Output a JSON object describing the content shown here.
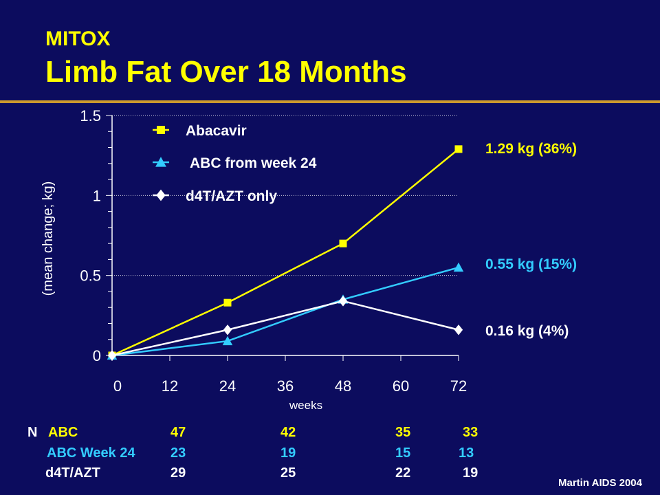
{
  "title": "MITOX",
  "subtitle": "Limb Fat Over 18 Months",
  "citation": "Martin AIDS 2004",
  "chart_data": {
    "type": "line",
    "ylabel": "(mean change; kg)",
    "xlabel": "weeks",
    "ylim": [
      0,
      1.5
    ],
    "xlim": [
      0,
      72
    ],
    "yticks": [
      0,
      0.5,
      1,
      1.5
    ],
    "ytick_labels": [
      "0",
      "0.5",
      "1",
      "1.5"
    ],
    "xticks": [
      0,
      12,
      24,
      36,
      48,
      60,
      72
    ],
    "xtick_labels": [
      "0",
      "12",
      "24",
      "36",
      "48",
      "60",
      "72"
    ],
    "grid": "horizontal",
    "legend_position": "top-left",
    "series": [
      {
        "name": "Abacavir",
        "color": "#ffff00",
        "marker": "square",
        "x": [
          0,
          24,
          48,
          72
        ],
        "y": [
          0,
          0.33,
          0.7,
          1.29
        ],
        "end_label": "1.29 kg (36%)"
      },
      {
        "name": "ABC from week 24",
        "color": "#33ccff",
        "marker": "triangle",
        "x": [
          0,
          24,
          48,
          72
        ],
        "y": [
          0,
          0.09,
          0.35,
          0.55
        ],
        "end_label": "0.55 kg (15%)"
      },
      {
        "name": "d4T/AZT only",
        "color": "#ffffff",
        "marker": "diamond",
        "x": [
          0,
          24,
          48,
          72
        ],
        "y": [
          0,
          0.16,
          0.34,
          0.16
        ],
        "end_label": "0.16 kg (4%)"
      }
    ]
  },
  "n_table": {
    "prefix": "N",
    "rows": [
      {
        "label": "ABC",
        "color": "#ffff00",
        "values": [
          "47",
          "42",
          "35",
          "33"
        ]
      },
      {
        "label": "ABC Week 24",
        "color": "#33ccff",
        "values": [
          "23",
          "19",
          "15",
          "13"
        ]
      },
      {
        "label": "d4T/AZT",
        "color": "#ffffff",
        "values": [
          "29",
          "25",
          "22",
          "19"
        ]
      }
    ]
  }
}
